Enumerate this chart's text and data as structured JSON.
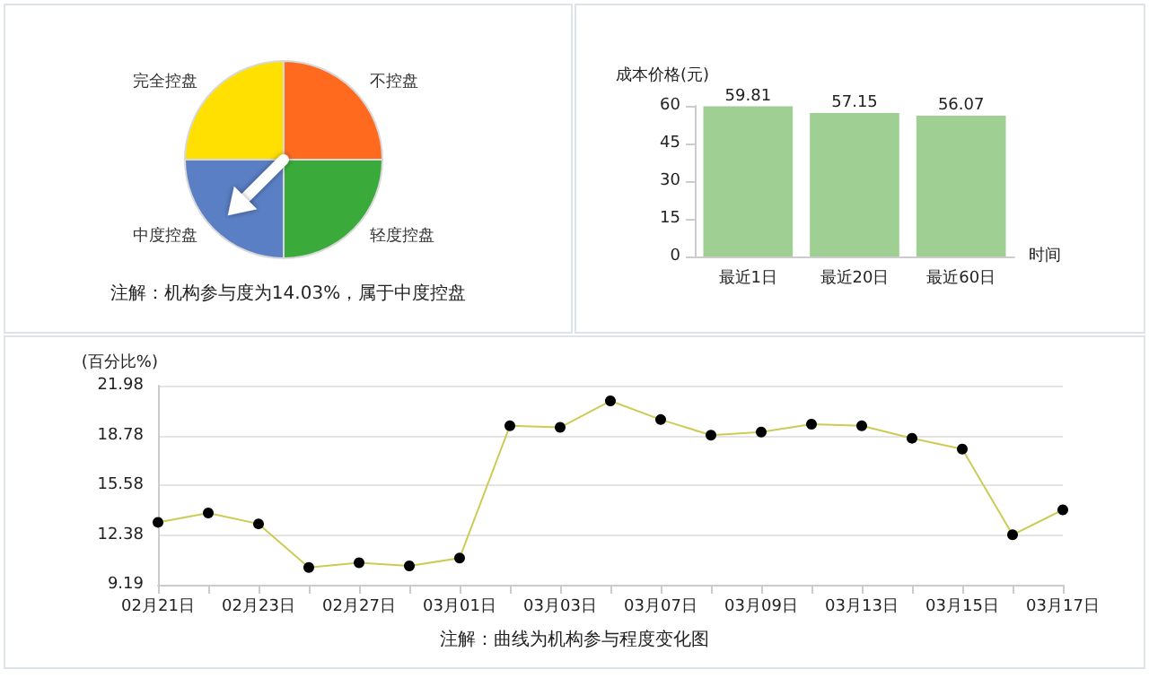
{
  "chart_data": [
    {
      "type": "pie",
      "categories": [
        "不控盘",
        "轻度控盘",
        "中度控盘",
        "完全控盘"
      ],
      "values": [
        25,
        25,
        25,
        25
      ],
      "colors": [
        "#ff6a1f",
        "#3aab3a",
        "#5b7fc4",
        "#ffe000"
      ],
      "needle": "中度控盘",
      "annotations": [
        "注解：机构参与度为14.03%，属于中度控盘"
      ]
    },
    {
      "type": "bar",
      "categories": [
        "最近1日",
        "最近20日",
        "最近60日"
      ],
      "values": [
        59.81,
        57.15,
        56.07
      ],
      "color": "#a0cf94",
      "ylabel": "成本价格(元)",
      "xlabel": "时间",
      "ylim": [
        0,
        60
      ],
      "yticks": [
        0,
        15,
        30,
        45,
        60
      ],
      "data_labels": true
    },
    {
      "type": "line",
      "categories": [
        "02月21日",
        null,
        "02月23日",
        null,
        "02月27日",
        null,
        "03月01日",
        null,
        "03月03日",
        null,
        "03月07日",
        null,
        "03月09日",
        null,
        "03月13日",
        null,
        "03月15日",
        null,
        "03月17日"
      ],
      "series": [
        {
          "color": "#cccc55",
          "values": [
            13.2,
            13.8,
            13.1,
            10.3,
            10.6,
            10.4,
            10.9,
            19.4,
            19.3,
            21.0,
            19.8,
            18.8,
            19.0,
            19.5,
            19.4,
            18.6,
            17.9,
            12.4,
            14.0
          ]
        }
      ],
      "ylabel": "(百分比%)",
      "ylim": [
        9.19,
        21.98
      ],
      "yticks": [
        9.19,
        12.38,
        15.58,
        18.78,
        21.98
      ],
      "grid": "y",
      "marker": "circle",
      "annotations": [
        "注解：曲线为机构参与程度变化图"
      ]
    }
  ]
}
